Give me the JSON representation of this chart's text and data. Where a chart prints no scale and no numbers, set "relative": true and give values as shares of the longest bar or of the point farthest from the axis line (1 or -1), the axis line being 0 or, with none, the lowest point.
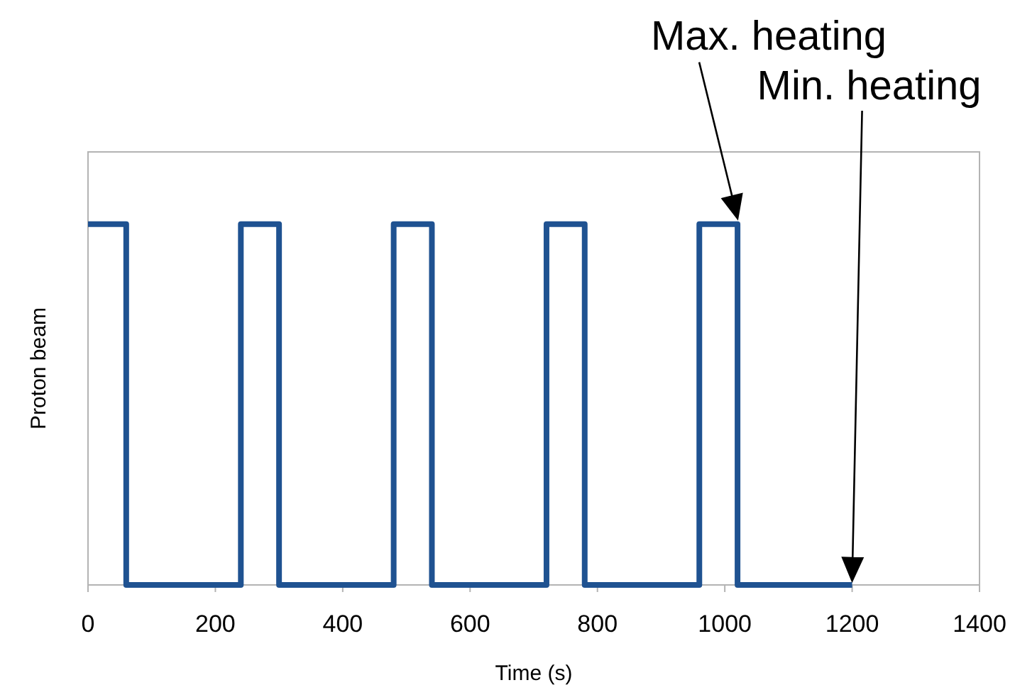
{
  "chart_data": {
    "type": "step",
    "relative": true,
    "xlabel": "Time (s)",
    "ylabel": "Proton beam",
    "x": [
      0,
      60,
      240,
      300,
      480,
      540,
      720,
      780,
      960,
      1020,
      1200
    ],
    "series": [
      {
        "color": "#1f5291",
        "values": [
          1,
          0,
          1,
          0,
          1,
          0,
          1,
          0,
          1,
          0,
          0
        ]
      }
    ],
    "xlim": [
      0,
      1400
    ],
    "xticks": [
      0,
      200,
      400,
      600,
      800,
      1000,
      1200,
      1400
    ],
    "grid": false,
    "legend": false,
    "tick_labels": "x",
    "annotations": [
      "Max. heating",
      "Min. heating"
    ]
  }
}
